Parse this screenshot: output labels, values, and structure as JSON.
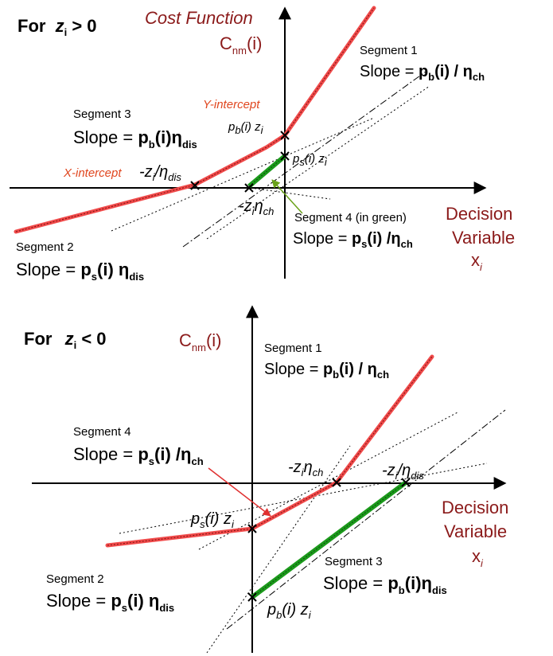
{
  "top": {
    "case_title": "For",
    "case_var": "z",
    "case_sub": "i",
    "case_cond": " > 0",
    "cost_function_label": "Cost Function",
    "cost_symbol": "C",
    "cost_sub": "nm",
    "cost_arg": "(i)",
    "seg1": {
      "title": "Segment 1",
      "slope_prefix": "Slope = ",
      "p": "p",
      "p_sub": "b",
      "mid": "(i) / η",
      "eta_sub": "ch"
    },
    "seg3": {
      "title": "Segment 3",
      "slope_prefix": "Slope = ",
      "p": "p",
      "p_sub": "b",
      "mid": "(i)η",
      "eta_sub": "dis"
    },
    "seg2": {
      "title": "Segment 2",
      "slope_prefix": "Slope = ",
      "p": "p",
      "p_sub": "s",
      "mid": "(i) η",
      "eta_sub": "dis"
    },
    "seg4": {
      "title": "Segment 4 (in green)",
      "slope_prefix": "Slope = ",
      "p": "p",
      "p_sub": "s",
      "mid": "(i) /η",
      "eta_sub": "ch"
    },
    "y_intercept_label": "Y-intercept",
    "x_intercept_label": "X-intercept",
    "pb_z": {
      "p": "p",
      "p_sub": "b",
      "mid": "(i) z",
      "z_sub": "i"
    },
    "ps_z": {
      "p": "p",
      "p_sub": "s",
      "mid": "(i) z",
      "z_sub": "i"
    },
    "neg_z_eta_dis": {
      "pre": "-z",
      "z_sub": "i",
      "mid": "/η",
      "eta_sub": "dis"
    },
    "neg_z_eta_ch": {
      "pre": "-z",
      "z_sub": "i",
      "mid": "η",
      "eta_sub": "ch"
    },
    "decision_1": "Decision",
    "decision_2": "Variable",
    "x_var": "x",
    "x_sub": "i"
  },
  "bottom": {
    "case_title": "For",
    "case_var": "z",
    "case_sub": "i",
    "case_cond": " < 0",
    "cost_symbol": "C",
    "cost_sub": "nm",
    "cost_arg": "(i)",
    "seg1": {
      "title": "Segment 1",
      "slope_prefix": "Slope = ",
      "p": "p",
      "p_sub": "b",
      "mid": "(i) / η",
      "eta_sub": "ch"
    },
    "seg4": {
      "title": "Segment 4",
      "slope_prefix": "Slope = ",
      "p": "p",
      "p_sub": "s",
      "mid": "(i) /η",
      "eta_sub": "ch"
    },
    "seg2": {
      "title": "Segment 2",
      "slope_prefix": "Slope = ",
      "p": "p",
      "p_sub": "s",
      "mid": "(i) η",
      "eta_sub": "dis"
    },
    "seg3": {
      "title": "Segment 3",
      "slope_prefix": "Slope = ",
      "p": "p",
      "p_sub": "b",
      "mid": "(i)η",
      "eta_sub": "dis"
    },
    "neg_z_eta_ch": {
      "pre": "-z",
      "z_sub": "i",
      "mid": "η",
      "eta_sub": "ch"
    },
    "neg_z_eta_dis": {
      "pre": "-z",
      "z_sub": "i",
      "mid": "/η",
      "eta_sub": "dis"
    },
    "ps_z": {
      "p": "p",
      "p_sub": "s",
      "mid": "(i) z",
      "z_sub": "i"
    },
    "pb_z": {
      "p": "p",
      "p_sub": "b",
      "mid": "(i) z",
      "z_sub": "i"
    },
    "decision_1": "Decision",
    "decision_2": "Variable",
    "x_var": "x",
    "x_sub": "i"
  },
  "colors": {
    "red_curve": "#f04a4a",
    "green_segment": "#1b9a1b",
    "label_dark_red": "#8b1a1a",
    "intercept_orange": "#e0461e"
  }
}
